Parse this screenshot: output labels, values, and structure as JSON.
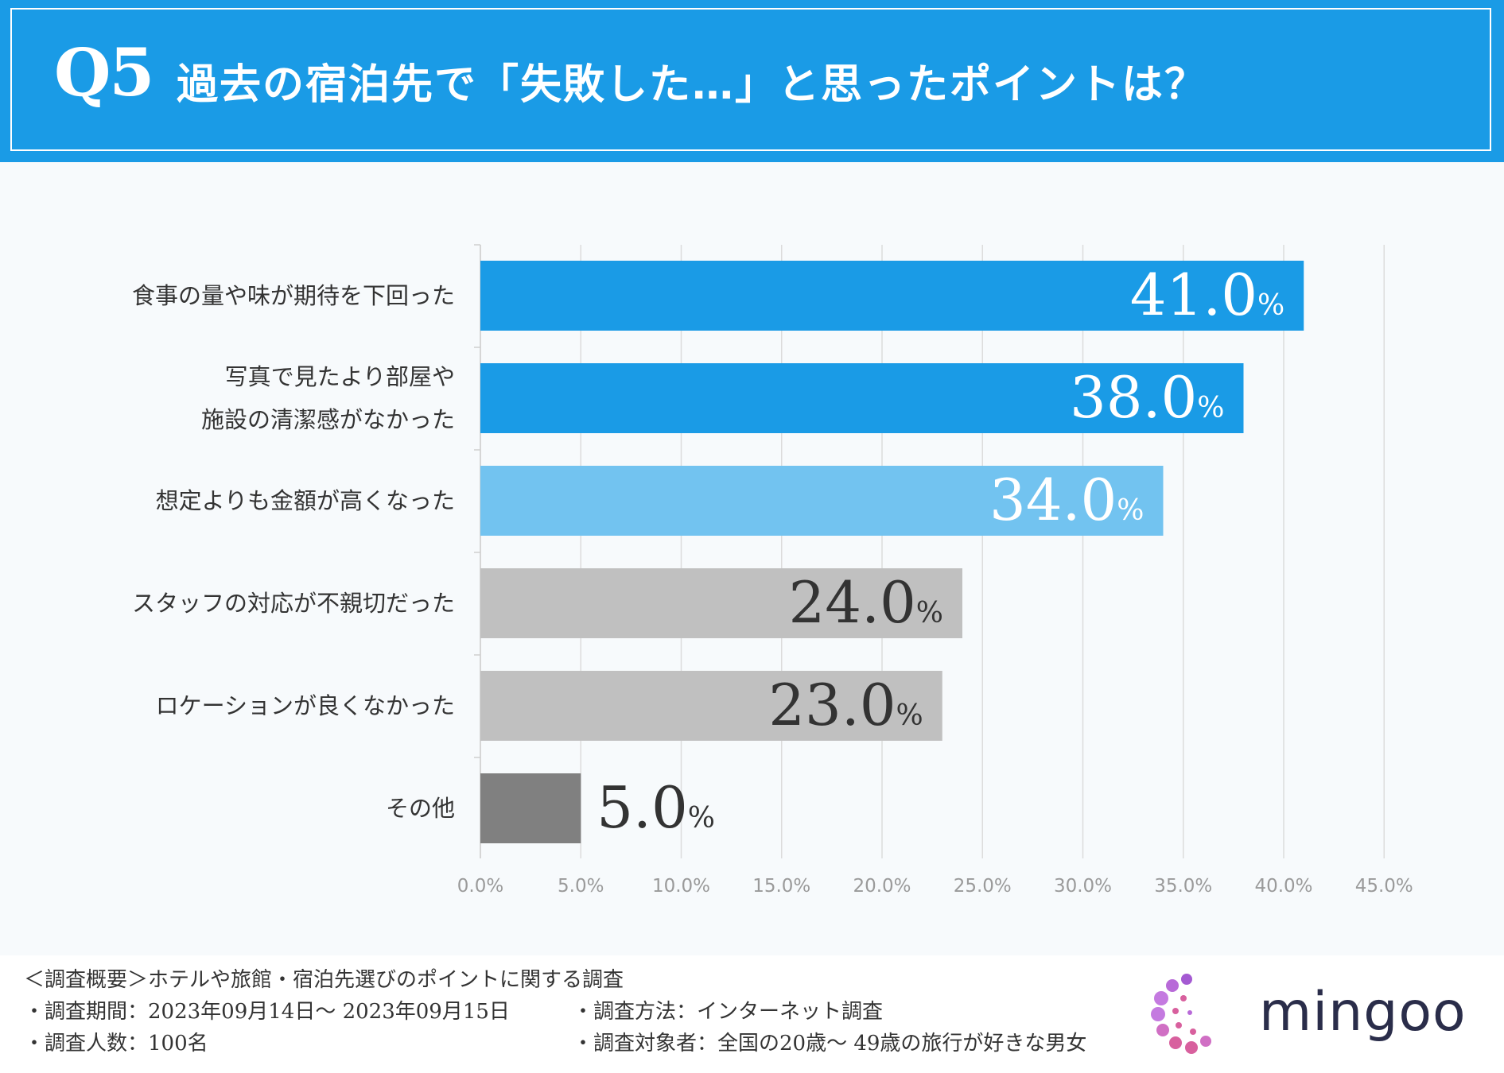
{
  "header": {
    "q_label": "Q5",
    "title": "過去の宿泊先で「失敗した…」と思ったポイントは？"
  },
  "chart_data": {
    "type": "bar",
    "orientation": "horizontal",
    "categories": [
      [
        "食事の量や味が期待を下回った"
      ],
      [
        "写真で見たより部屋や",
        "施設の清潔感がなかった"
      ],
      [
        "想定よりも金額が高くなった"
      ],
      [
        "スタッフの対応が不親切だった"
      ],
      [
        "ロケーションが良くなかった"
      ],
      [
        "その他"
      ]
    ],
    "values": [
      41.0,
      38.0,
      34.0,
      24.0,
      23.0,
      5.0
    ],
    "value_labels": [
      "41.0",
      "38.0",
      "34.0",
      "24.0",
      "23.0",
      "5.0"
    ],
    "unit": "%",
    "bar_colors": [
      "#1a9be6",
      "#1a9be6",
      "#72c3f0",
      "#c0c0c0",
      "#c0c0c0",
      "#808080"
    ],
    "label_colors": [
      "#ffffff",
      "#ffffff",
      "#ffffff",
      "#333333",
      "#333333",
      "#333333"
    ],
    "xlim": [
      0,
      45
    ],
    "xticks": [
      "0.0%",
      "5.0%",
      "10.0%",
      "15.0%",
      "20.0%",
      "25.0%",
      "30.0%",
      "35.0%",
      "40.0%",
      "45.0%"
    ],
    "grid": true
  },
  "footer": {
    "line1": "＜調査概要＞ホテルや旅館・宿泊先選びのポイントに関する調査",
    "line2_left": "・調査期間：2023年09月14日〜 2023年09月15日",
    "line2_right": "・調査方法：インターネット調査",
    "line3_left": "・調査人数：100名",
    "line3_right": "・調査対象者：全国の20歳〜 49歳の旅行が好きな男女"
  },
  "logo": {
    "text": "mingoo"
  },
  "colors": {
    "header_bg": "#1a9be6",
    "page_bg": "#f7fafc"
  }
}
